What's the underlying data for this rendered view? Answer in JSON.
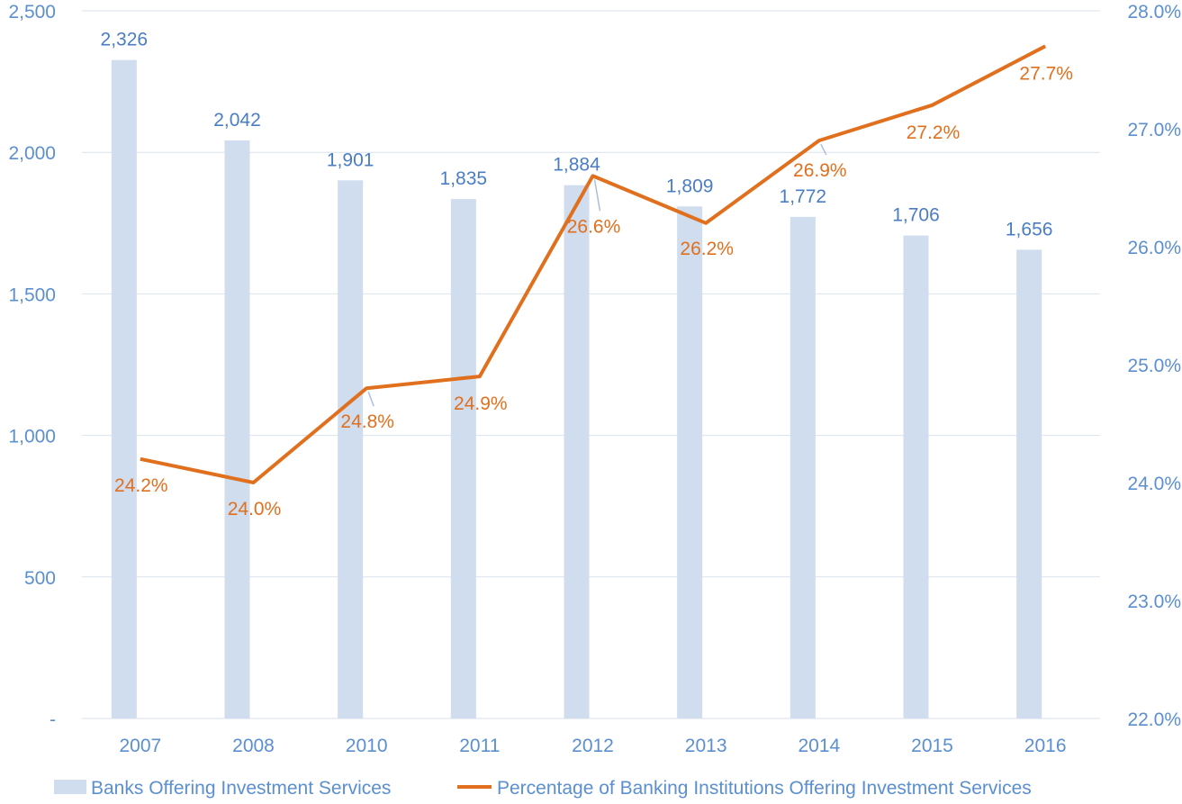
{
  "chart_data": {
    "type": "bar+line",
    "title": "",
    "categories": [
      "2007",
      "2008",
      "2010",
      "2011",
      "2012",
      "2013",
      "2014",
      "2015",
      "2016"
    ],
    "series": [
      {
        "name": "Banks Offering Investment Services",
        "type": "bar",
        "axis": "left",
        "values": [
          2326,
          2042,
          1901,
          1835,
          1884,
          1809,
          1772,
          1706,
          1656
        ],
        "labels": [
          "2,326",
          "2,042",
          "1,901",
          "1,835",
          "1,884",
          "1,809",
          "1,772",
          "1,706",
          "1,656"
        ],
        "color": "#cfddee",
        "label_color": "#4a7dc4"
      },
      {
        "name": "Percentage of Banking Institutions Offering Investment Services",
        "type": "line",
        "axis": "right",
        "values": [
          24.2,
          24.0,
          24.8,
          24.9,
          26.6,
          26.2,
          26.9,
          27.2,
          27.7
        ],
        "labels": [
          "24.2%",
          "24.0%",
          "24.8%",
          "24.9%",
          "26.6%",
          "26.2%",
          "26.9%",
          "27.2%",
          "27.7%"
        ],
        "color": "#e0701e"
      }
    ],
    "left_axis": {
      "range": [
        0,
        2500
      ],
      "ticks": [
        0,
        500,
        1000,
        1500,
        2000,
        2500
      ],
      "tick_labels": [
        "-",
        "500",
        "1,000",
        "1,500",
        "2,000",
        "2,500"
      ]
    },
    "right_axis": {
      "range": [
        22,
        28
      ],
      "ticks": [
        22,
        23,
        24,
        25,
        26,
        27,
        28
      ],
      "tick_labels": [
        "22.0%",
        "23.0%",
        "24.0%",
        "25.0%",
        "26.0%",
        "27.0%",
        "28.0%"
      ]
    },
    "grid": true,
    "legend": "bottom",
    "axis_color": "#5b8fd0"
  }
}
